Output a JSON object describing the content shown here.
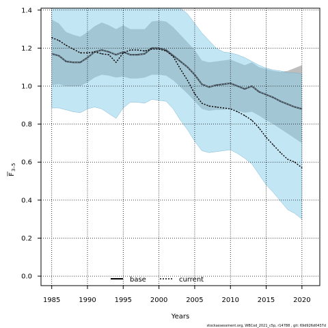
{
  "chart_data": {
    "type": "line",
    "xlabel": "Years",
    "ylabel_main": "F",
    "ylabel_sub": "3–5",
    "xlim": [
      1983.5,
      2022.5
    ],
    "ylim": [
      -0.05,
      1.41
    ],
    "x_ticks": [
      "1985",
      "1990",
      "1995",
      "2000",
      "2005",
      "2010",
      "2015",
      "2020"
    ],
    "y_ticks": [
      "0.0",
      "0.2",
      "0.4",
      "0.6",
      "0.8",
      "1.0",
      "1.2",
      "1.4"
    ],
    "grid": true,
    "legend_position": "bottom-center",
    "x": [
      1985,
      1986,
      1987,
      1988,
      1989,
      1990,
      1991,
      1992,
      1993,
      1994,
      1995,
      1996,
      1997,
      1998,
      1999,
      2000,
      2001,
      2002,
      2003,
      2004,
      2005,
      2006,
      2007,
      2008,
      2009,
      2010,
      2011,
      2012,
      2013,
      2014,
      2015,
      2016,
      2017,
      2018,
      2019,
      2020
    ],
    "series": [
      {
        "name": "base",
        "color": "#000000",
        "band_color": "#a8a8a8",
        "values": [
          1.17,
          1.16,
          1.13,
          1.125,
          1.125,
          1.15,
          1.18,
          1.19,
          1.18,
          1.165,
          1.18,
          1.165,
          1.165,
          1.17,
          1.2,
          1.2,
          1.19,
          1.16,
          1.13,
          1.1,
          1.06,
          1.01,
          0.995,
          1.005,
          1.01,
          1.015,
          1.0,
          0.985,
          1.0,
          0.97,
          0.955,
          0.94,
          0.92,
          0.905,
          0.89,
          0.88
        ],
        "lower": [
          1.005,
          1.01,
          1.0,
          1.0,
          1.0,
          1.02,
          1.045,
          1.06,
          1.055,
          1.045,
          1.05,
          1.04,
          1.04,
          1.045,
          1.06,
          1.06,
          1.055,
          1.03,
          0.995,
          0.96,
          0.92,
          0.88,
          0.87,
          0.875,
          0.875,
          0.88,
          0.87,
          0.86,
          0.865,
          0.845,
          0.82,
          0.8,
          0.775,
          0.75,
          0.725,
          0.7
        ],
        "upper": [
          1.35,
          1.33,
          1.285,
          1.27,
          1.26,
          1.285,
          1.315,
          1.335,
          1.32,
          1.3,
          1.32,
          1.3,
          1.3,
          1.3,
          1.34,
          1.345,
          1.34,
          1.31,
          1.27,
          1.23,
          1.19,
          1.135,
          1.125,
          1.13,
          1.135,
          1.14,
          1.125,
          1.11,
          1.125,
          1.1,
          1.09,
          1.08,
          1.075,
          1.08,
          1.095,
          1.11
        ]
      },
      {
        "name": "current",
        "color": "#000000",
        "band_color": "#87ceeb",
        "values": [
          1.255,
          1.24,
          1.215,
          1.195,
          1.175,
          1.175,
          1.18,
          1.17,
          1.165,
          1.125,
          1.175,
          1.19,
          1.19,
          1.185,
          1.195,
          1.195,
          1.185,
          1.155,
          1.09,
          1.03,
          0.96,
          0.91,
          0.895,
          0.89,
          0.885,
          0.88,
          0.865,
          0.845,
          0.82,
          0.78,
          0.73,
          0.69,
          0.65,
          0.615,
          0.6,
          0.57
        ],
        "lower": [
          0.885,
          0.885,
          0.875,
          0.865,
          0.86,
          0.88,
          0.89,
          0.88,
          0.855,
          0.83,
          0.885,
          0.915,
          0.915,
          0.91,
          0.93,
          0.925,
          0.92,
          0.88,
          0.82,
          0.77,
          0.71,
          0.66,
          0.65,
          0.655,
          0.66,
          0.665,
          0.645,
          0.62,
          0.59,
          0.535,
          0.48,
          0.44,
          0.395,
          0.35,
          0.33,
          0.3
        ],
        "upper": [
          1.41,
          1.41,
          1.41,
          1.41,
          1.41,
          1.41,
          1.41,
          1.41,
          1.41,
          1.41,
          1.41,
          1.41,
          1.41,
          1.41,
          1.41,
          1.41,
          1.41,
          1.41,
          1.41,
          1.38,
          1.33,
          1.28,
          1.24,
          1.2,
          1.18,
          1.175,
          1.165,
          1.15,
          1.13,
          1.11,
          1.095,
          1.085,
          1.08,
          1.07,
          1.07,
          1.065
        ]
      }
    ]
  },
  "footer": "stockassessment.org, WBCod_2021_c5p, r14788 , git: 69d926d0437d"
}
